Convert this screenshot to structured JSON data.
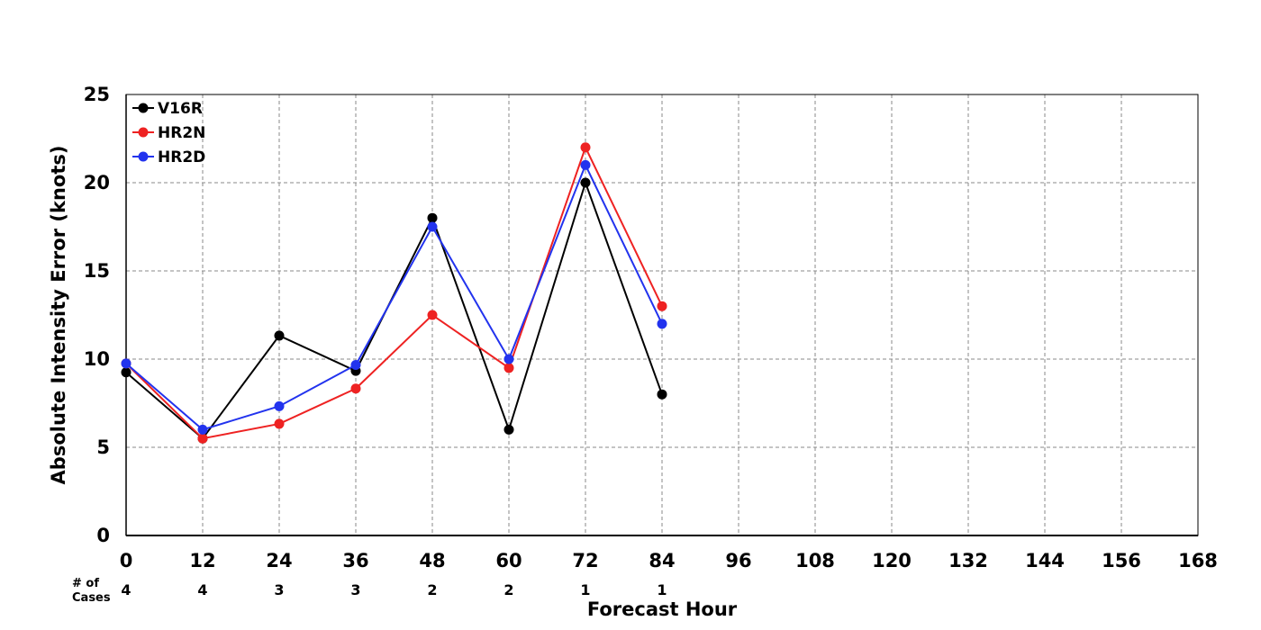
{
  "chart_data": {
    "type": "line",
    "xlabel": "Forecast Hour",
    "ylabel": "Absolute Intensity Error (knots)",
    "xlim": [
      0,
      168
    ],
    "ylim": [
      0,
      25
    ],
    "x_ticks": [
      0,
      12,
      24,
      36,
      48,
      60,
      72,
      84,
      96,
      108,
      120,
      132,
      144,
      156,
      168
    ],
    "y_ticks": [
      0,
      5,
      10,
      15,
      20,
      25
    ],
    "grid": true,
    "legend_position": "top-left",
    "x": [
      0,
      12,
      24,
      36,
      48,
      60,
      72,
      84
    ],
    "series": [
      {
        "name": "V16R",
        "color": "#000000",
        "values": [
          9.25,
          5.5,
          11.33,
          9.33,
          18.0,
          6.0,
          20.0,
          8.0
        ]
      },
      {
        "name": "HR2N",
        "color": "#ee2222",
        "values": [
          9.75,
          5.5,
          6.33,
          8.33,
          12.5,
          9.5,
          22.0,
          13.0
        ]
      },
      {
        "name": "HR2D",
        "color": "#2233ee",
        "values": [
          9.75,
          6.0,
          7.33,
          9.67,
          17.5,
          10.0,
          21.0,
          12.0
        ]
      }
    ],
    "cases": {
      "label_line1": "# of",
      "label_line2": "Cases",
      "x": [
        0,
        12,
        24,
        36,
        48,
        60,
        72,
        84
      ],
      "counts": [
        "4",
        "4",
        "3",
        "3",
        "2",
        "2",
        "1",
        "1"
      ]
    }
  }
}
